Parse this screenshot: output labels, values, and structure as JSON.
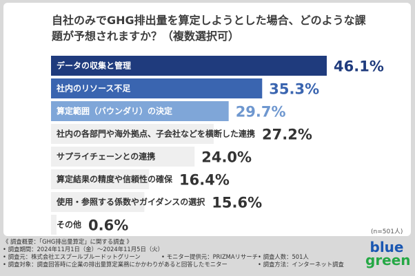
{
  "question": "自社のみでGHG排出量を算定しようとした場合、どのような課題が予想されますか？（複数選択可）",
  "sample_note": "(n=501人)",
  "chart_data": {
    "type": "bar",
    "orientation": "horizontal",
    "title": "自社のみでGHG排出量を算定しようとした場合、どのような課題が予想されますか？（複数選択可）",
    "unit": "%",
    "categories": [
      "データの収集と管理",
      "社内のリソース不足",
      "算定範囲（バウンダリ）の決定",
      "社内の各部門や海外拠点、子会社などを横断した連携",
      "サプライチェーンとの連携",
      "算定結果の精度や信頼性の確保",
      "使用・参照する係数やガイダンスの選択",
      "その他"
    ],
    "values": [
      46.1,
      35.3,
      29.7,
      27.2,
      24.0,
      16.4,
      15.6,
      0.6
    ],
    "value_labels": [
      "46.1%",
      "35.3%",
      "29.7%",
      "27.2%",
      "24.0%",
      "16.4%",
      "15.6%",
      "0.6%"
    ],
    "bar_colors": [
      "#1f3b7d",
      "#3a65b0",
      "#7fa6d8",
      "#efefef",
      "#efefef",
      "#efefef",
      "#efefef",
      "#efefef"
    ],
    "label_colors": [
      "#ffffff",
      "#ffffff",
      "#ffffff",
      "#333333",
      "#333333",
      "#333333",
      "#333333",
      "#333333"
    ],
    "value_colors": [
      "#1f3b7d",
      "#3a65b0",
      "#6e97cf",
      "#333333",
      "#333333",
      "#333333",
      "#333333",
      "#333333"
    ],
    "xlim": [
      0,
      46.1
    ]
  },
  "footer": {
    "heading": "《 調査概要：「GHG排出量算定」に関する調査 》",
    "period": "• 調査期間：2024年11月1日（金）〜2024年11月5日（火）",
    "organizer": "• 調査元：株式会社エスプールブルードットグリーン",
    "provider": "• モニター提供元：PRIZMAリサーチ",
    "respondents": "• 調査人数：501人",
    "target": "• 調査対象：調査回答時に企業の排出量算定業務にかかわりがあると回答したモニター",
    "method": "• 調査方法：インターネット調査"
  },
  "logo": {
    "line1": "blue",
    "line2": "green"
  }
}
